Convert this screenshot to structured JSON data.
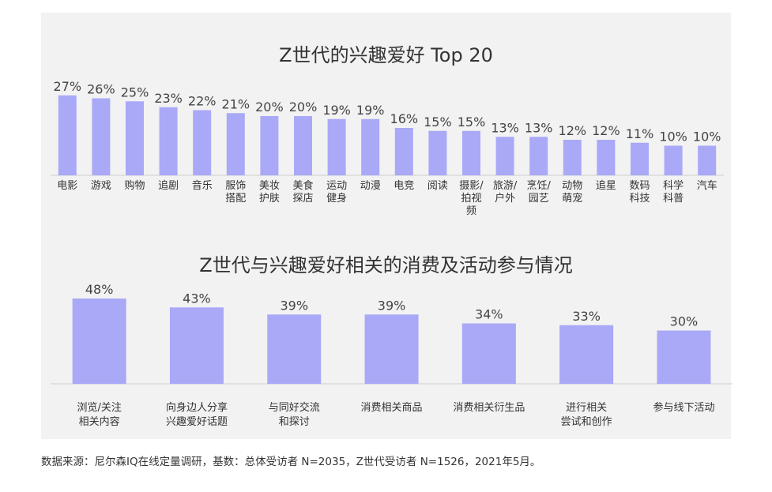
{
  "chart_data": [
    {
      "type": "bar",
      "title": "Z世代的兴趣爱好 Top 20",
      "categories": [
        "电影",
        "游戏",
        "购物",
        "追剧",
        "音乐",
        "服饰\n搭配",
        "美妆\n护肤",
        "美食\n探店",
        "运动\n健身",
        "动漫",
        "电竞",
        "阅读",
        "摄影/\n拍视\n频",
        "旅游/\n户外",
        "烹饪/\n园艺",
        "动物\n萌宠",
        "追星",
        "数码\n科技",
        "科学\n科普",
        "汽车"
      ],
      "values": [
        27,
        26,
        25,
        23,
        22,
        21,
        20,
        20,
        19,
        19,
        16,
        15,
        15,
        13,
        13,
        12,
        12,
        11,
        10,
        10
      ],
      "labels": [
        "27%",
        "26%",
        "25%",
        "23%",
        "22%",
        "21%",
        "20%",
        "20%",
        "19%",
        "19%",
        "16%",
        "15%",
        "15%",
        "13%",
        "13%",
        "12%",
        "12%",
        "11%",
        "10%",
        "10%"
      ],
      "unit": "%",
      "color": "#a9a9f7"
    },
    {
      "type": "bar",
      "title": "Z世代与兴趣爱好相关的消费及活动参与情况",
      "categories": [
        "浏览/关注\n相关内容",
        "向身边人分享\n兴趣爱好话题",
        "与同好交流\n和探讨",
        "消费相关商品",
        "消费相关衍生品",
        "进行相关\n尝试和创作",
        "参与线下活动"
      ],
      "values": [
        48,
        43,
        39,
        39,
        34,
        33,
        30
      ],
      "labels": [
        "48%",
        "43%",
        "39%",
        "39%",
        "34%",
        "33%",
        "30%"
      ],
      "unit": "%",
      "color": "#a9a9f7"
    }
  ],
  "source": "数据来源：尼尔森IQ在线定量调研，基数：总体受访者 N=2035，Z世代受访者 N=1526，2021年5月。"
}
